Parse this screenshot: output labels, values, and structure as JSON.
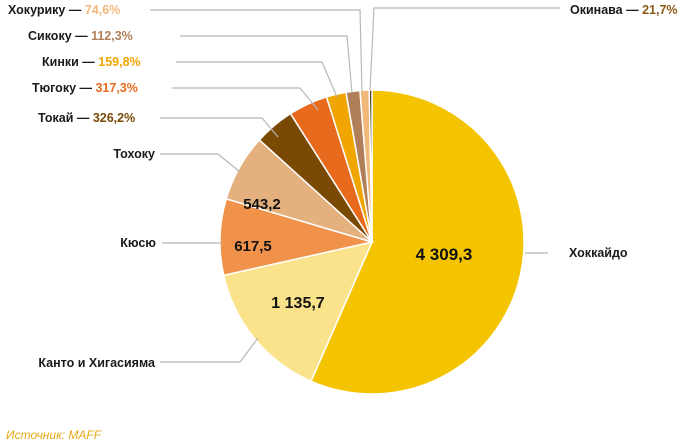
{
  "chart_data": {
    "type": "pie",
    "title": "",
    "slices": [
      {
        "name": "Хоккайдо",
        "value": 4309.3,
        "value_label": "4 309,3",
        "color": "#f5c400"
      },
      {
        "name": "Канто и Хигасияма",
        "value": 1135.7,
        "value_label": "1 135,7",
        "color": "#fbe38c"
      },
      {
        "name": "Кюсю",
        "value": 617.5,
        "value_label": "617,5",
        "color": "#f0924a"
      },
      {
        "name": "Тохоку",
        "value": 543.2,
        "value_label": "543,2",
        "color": "#e3b07e"
      },
      {
        "name": "Токай",
        "value": 326.2,
        "value_label": "326,2%",
        "color": "#7a4a05"
      },
      {
        "name": "Тюгоку",
        "value": 317.3,
        "value_label": "317,3%",
        "color": "#e86a1c"
      },
      {
        "name": "Кинки",
        "value": 159.8,
        "value_label": "159,8%",
        "color": "#f0a500"
      },
      {
        "name": "Сикоку",
        "value": 112.3,
        "value_label": "112,3%",
        "color": "#b07f5a"
      },
      {
        "name": "Хокурику",
        "value": 74.6,
        "value_label": "74,6%",
        "color": "#f2b87a"
      },
      {
        "name": "Окинава",
        "value": 21.7,
        "value_label": "21,7%",
        "color": "#3a2300"
      }
    ]
  },
  "source": "Источник: MAFF"
}
